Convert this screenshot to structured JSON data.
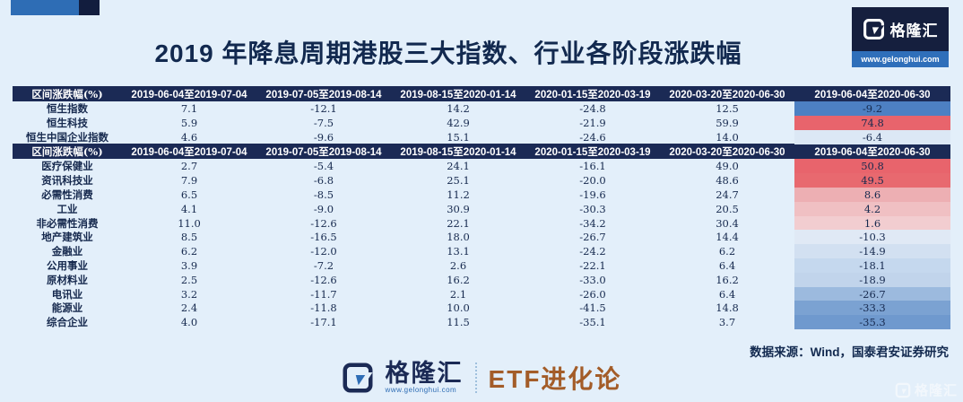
{
  "title": "2019 年降息周期港股三大指数、行业各阶段涨跌幅",
  "header_logo": {
    "brand": "格隆汇",
    "url": "www.gelonghui.com"
  },
  "chart_data": {
    "type": "table",
    "title": "2019 年降息周期港股三大指数、行业各阶段涨跌幅",
    "header_label": "区间涨跌幅(%)",
    "periods": [
      "2019-06-04至2019-07-04",
      "2019-07-05至2019-08-14",
      "2019-08-15至2020-01-14",
      "2020-01-15至2020-03-19",
      "2020-03-20至2020-06-30",
      "2019-06-04至2020-06-30"
    ],
    "indices": [
      {
        "name": "恒生指数",
        "values": [
          "7.1",
          "-12.1",
          "14.2",
          "-24.8",
          "12.5",
          "-9.2"
        ],
        "total_bg": "#4d80c3"
      },
      {
        "name": "恒生科技",
        "values": [
          "5.9",
          "-7.5",
          "42.9",
          "-21.9",
          "59.9",
          "74.8"
        ],
        "total_bg": "#e8646c"
      },
      {
        "name": "恒生中国企业指数",
        "values": [
          "4.6",
          "-9.6",
          "15.1",
          "-24.6",
          "14.0",
          "-6.4"
        ],
        "total_bg": "#dce8f5"
      }
    ],
    "sectors": [
      {
        "name": "医疗保健业",
        "values": [
          "2.7",
          "-5.4",
          "24.1",
          "-16.1",
          "49.0",
          "50.8"
        ],
        "total_bg": "#e8646c"
      },
      {
        "name": "资讯科技业",
        "values": [
          "7.9",
          "-6.8",
          "25.1",
          "-20.0",
          "48.6",
          "49.5"
        ],
        "total_bg": "#e8696f"
      },
      {
        "name": "必需性消费",
        "values": [
          "6.5",
          "-8.5",
          "11.2",
          "-19.6",
          "24.7",
          "8.6"
        ],
        "total_bg": "#edafb3"
      },
      {
        "name": "工业",
        "values": [
          "4.1",
          "-9.0",
          "30.9",
          "-30.3",
          "20.5",
          "4.2"
        ],
        "total_bg": "#f0c0c3"
      },
      {
        "name": "非必需性消费",
        "values": [
          "11.0",
          "-12.6",
          "22.1",
          "-34.2",
          "30.4",
          "1.6"
        ],
        "total_bg": "#f2cdd0"
      },
      {
        "name": "地产建筑业",
        "values": [
          "8.5",
          "-16.5",
          "18.0",
          "-26.7",
          "14.4",
          "-10.3"
        ],
        "total_bg": "#e0e9f5"
      },
      {
        "name": "金融业",
        "values": [
          "6.2",
          "-12.0",
          "13.1",
          "-24.2",
          "6.2",
          "-14.9"
        ],
        "total_bg": "#d2e0f1"
      },
      {
        "name": "公用事业",
        "values": [
          "3.9",
          "-7.2",
          "2.6",
          "-22.1",
          "6.4",
          "-18.1"
        ],
        "total_bg": "#c5d8ee"
      },
      {
        "name": "原材料业",
        "values": [
          "2.5",
          "-12.6",
          "16.2",
          "-33.0",
          "16.2",
          "-18.9"
        ],
        "total_bg": "#c1d4eb"
      },
      {
        "name": "电讯业",
        "values": [
          "3.2",
          "-11.7",
          "2.1",
          "-26.0",
          "6.4",
          "-26.7"
        ],
        "total_bg": "#9cbade"
      },
      {
        "name": "能源业",
        "values": [
          "2.4",
          "-11.8",
          "10.0",
          "-41.5",
          "14.8",
          "-33.3"
        ],
        "total_bg": "#7ba2d2"
      },
      {
        "name": "综合企业",
        "values": [
          "4.0",
          "-17.1",
          "11.5",
          "-35.1",
          "3.7",
          "-35.3"
        ],
        "total_bg": "#6f99ce"
      }
    ]
  },
  "source_note": "数据来源：Wind，国泰君安证券研究",
  "footer": {
    "brand": "格隆汇",
    "url": "www.gelonghui.com",
    "partner": "ETF进化论"
  },
  "watermark": "格隆汇",
  "colors": {
    "page_bg": "#e3effa",
    "header_bg": "#1b2a55",
    "text_navy": "#12294f",
    "accent_blue": "#2e6db5",
    "gain_red": "#e8646c",
    "loss_blue": "#4d80c3",
    "partner_brown": "#a35c28"
  }
}
